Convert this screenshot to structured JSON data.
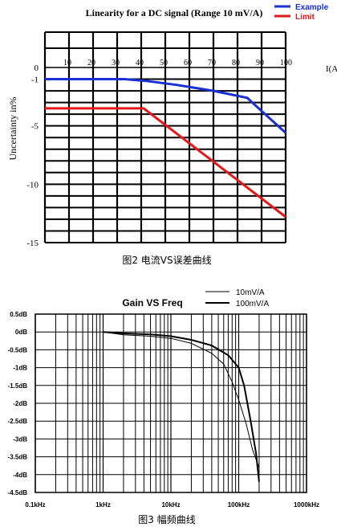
{
  "chart_data": [
    {
      "type": "line",
      "title": "Linearity for a DC signal (Range 10 mV/A)",
      "xlabel": "I(A",
      "ylabel": "Uncertainty in%",
      "caption": "图2 电流VS误差曲线",
      "x_ticks": [
        "10",
        "20",
        "30",
        "40",
        "50",
        "60",
        "70",
        "80",
        "90",
        "100"
      ],
      "y_ticks": [
        "0",
        "-1",
        "-5",
        "-10",
        "-15"
      ],
      "xlim": [
        0,
        100
      ],
      "ylim": [
        -15,
        0
      ],
      "grid": true,
      "legend_position": "top-right",
      "series": [
        {
          "name": "Example",
          "color": "#1a2fd6",
          "points": [
            [
              0,
              -1.0
            ],
            [
              33,
              -1.0
            ],
            [
              42,
              -1.15
            ],
            [
              55,
              -1.5
            ],
            [
              70,
              -2.0
            ],
            [
              84,
              -2.6
            ],
            [
              100,
              -5.6
            ]
          ]
        },
        {
          "name": "Limit",
          "color": "#e41818",
          "points": [
            [
              0,
              -3.5
            ],
            [
              41,
              -3.5
            ],
            [
              100,
              -12.8
            ]
          ]
        }
      ]
    },
    {
      "type": "line",
      "title": "Gain VS Freq",
      "xscale": "log",
      "x_ticks": [
        "0.1kHz",
        "1kHz",
        "10kHz",
        "100kHz",
        "1000kHz"
      ],
      "y_ticks": [
        "0.5dB",
        "0dB",
        "-0.5dB",
        "-1dB",
        "-1.5dB",
        "-2dB",
        "-2.5dB",
        "-3dB",
        "-3.5dB",
        "-4dB",
        "-4.5dB"
      ],
      "xlim": [
        0.1,
        1000
      ],
      "ylim": [
        -4.5,
        0.5
      ],
      "grid": true,
      "legend_position": "top-right",
      "caption": "图3 幅频曲线",
      "series": [
        {
          "name": "10mV/A",
          "color": "#000000",
          "stroke_width": 1,
          "points": [
            [
              1.0,
              0
            ],
            [
              2,
              -0.08
            ],
            [
              5,
              -0.12
            ],
            [
              10,
              -0.18
            ],
            [
              20,
              -0.32
            ],
            [
              40,
              -0.6
            ],
            [
              60,
              -0.9
            ],
            [
              80,
              -1.4
            ],
            [
              100,
              -1.9
            ],
            [
              130,
              -2.6
            ],
            [
              160,
              -3.3
            ],
            [
              200,
              -3.8
            ]
          ]
        },
        {
          "name": "100mV/A",
          "color": "#000000",
          "stroke_width": 2,
          "points": [
            [
              1.0,
              0
            ],
            [
              2,
              -0.04
            ],
            [
              5,
              -0.07
            ],
            [
              10,
              -0.12
            ],
            [
              20,
              -0.22
            ],
            [
              40,
              -0.38
            ],
            [
              70,
              -0.65
            ],
            [
              100,
              -1.0
            ],
            [
              120,
              -1.5
            ],
            [
              150,
              -2.5
            ],
            [
              180,
              -3.4
            ],
            [
              200,
              -4.2
            ]
          ]
        }
      ]
    }
  ]
}
